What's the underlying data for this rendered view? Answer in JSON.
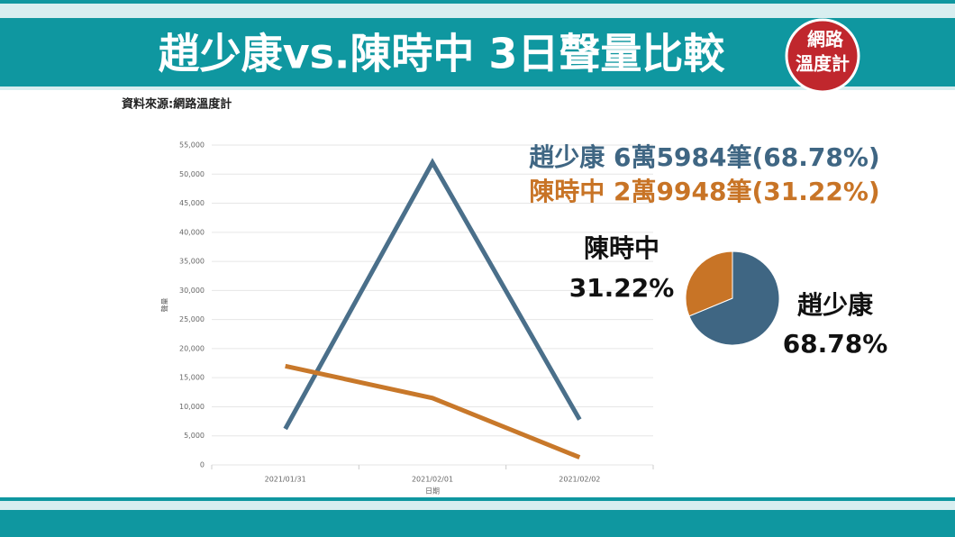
{
  "header": {
    "title": "趙少康vs.陳時中 3日聲量比較",
    "logo": [
      "網路",
      "溫度計"
    ]
  },
  "source": "資料來源:網路溫度計",
  "chart_data": [
    {
      "type": "line",
      "categories": [
        "2021/01/31",
        "2021/02/01",
        "2021/02/02"
      ],
      "series": [
        {
          "name": "趙少康",
          "color": "#4a6f8a",
          "values": [
            6200,
            52000,
            7800
          ]
        },
        {
          "name": "陳時中",
          "color": "#c8782a",
          "values": [
            17000,
            11500,
            1300
          ]
        }
      ],
      "ylim": [
        0,
        55000
      ],
      "yticks": [
        0,
        {
          "value": 5000,
          "label": "5,000"
        },
        {
          "value": 10000,
          "label": "10,000"
        },
        {
          "value": 15000,
          "label": "15,000"
        },
        {
          "value": 20000,
          "label": "20,000"
        },
        {
          "value": 25000,
          "label": "25,000"
        },
        {
          "value": 30000,
          "label": "30,000"
        },
        {
          "value": 35000,
          "label": "35,000"
        },
        {
          "value": 40000,
          "label": "40,000"
        },
        {
          "value": 45000,
          "label": "45,000"
        },
        {
          "value": 50000,
          "label": "50,000"
        },
        {
          "value": 55000,
          "label": "55,000"
        }
      ],
      "xlabel": "日期",
      "ylabel": "聲量",
      "grid": true
    },
    {
      "type": "pie",
      "categories": [
        "趙少康",
        "陳時中"
      ],
      "values": [
        68.78,
        31.22
      ],
      "value_labels": [
        "68.78%",
        "31.22%"
      ],
      "colors": [
        "#3f6683",
        "#c87426"
      ],
      "summary": [
        "趙少康 6萬5984筆(68.78%)",
        "陳時中 2萬9948筆(31.22%)"
      ]
    }
  ]
}
